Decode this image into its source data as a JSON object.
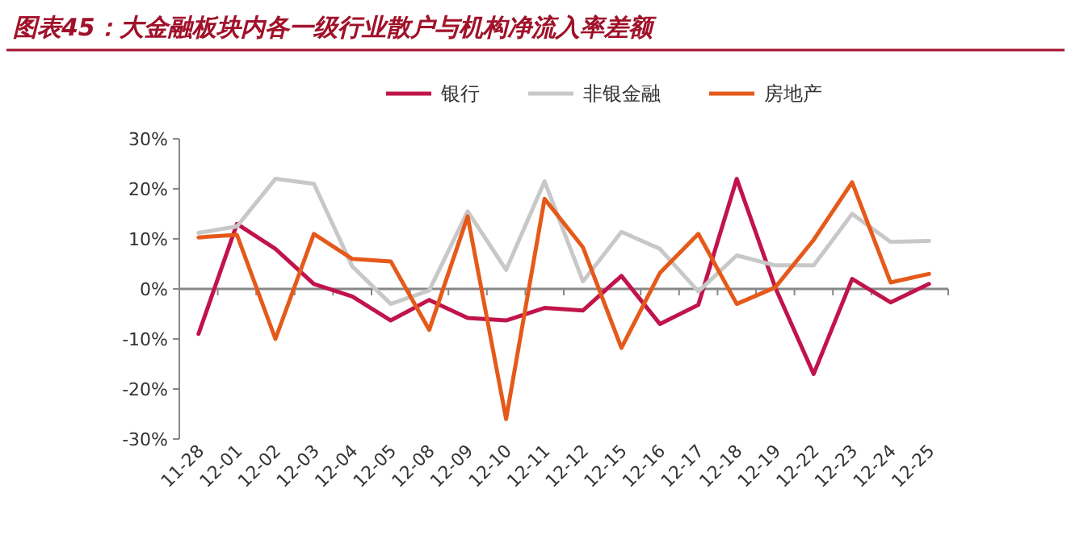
{
  "chart_data": {
    "type": "line",
    "title": "图表45：大金融板块内各一级行业散户与机构净流入率差额",
    "categories": [
      "11-28",
      "12-01",
      "12-02",
      "12-03",
      "12-04",
      "12-05",
      "12-08",
      "12-09",
      "12-10",
      "12-11",
      "12-12",
      "12-15",
      "12-16",
      "12-17",
      "12-18",
      "12-19",
      "12-22",
      "12-23",
      "12-24",
      "12-25"
    ],
    "series": [
      {
        "name": "银行",
        "color": "#c0144b",
        "values": [
          -9,
          13,
          8,
          1,
          -1.5,
          -6.3,
          -2.2,
          -5.8,
          -6.3,
          -3.8,
          -4.3,
          2.6,
          -7,
          -3.2,
          22,
          0.3,
          -17,
          2,
          -2.7,
          1
        ]
      },
      {
        "name": "非银金融",
        "color": "#c8c8c8",
        "values": [
          11.2,
          12.5,
          22,
          21,
          4.5,
          -3,
          -0.3,
          15.5,
          3.8,
          21.5,
          1.5,
          11.4,
          8,
          -0.5,
          6.7,
          4.7,
          4.7,
          15,
          9.4,
          9.6
        ]
      },
      {
        "name": "房地产",
        "color": "#e55a1a",
        "values": [
          10.3,
          10.8,
          -10,
          11,
          6,
          5.5,
          -8.2,
          14.5,
          -26,
          18,
          8.3,
          -11.8,
          3.2,
          11,
          -3,
          0.3,
          9.8,
          21.3,
          1.3,
          3
        ]
      }
    ],
    "ylim": [
      -30,
      30
    ],
    "yticks": [
      {
        "value": -30,
        "label": "-30%"
      },
      {
        "value": -20,
        "label": "-20%"
      },
      {
        "value": -10,
        "label": "-10%"
      },
      {
        "value": 0,
        "label": "0%"
      },
      {
        "value": 10,
        "label": "10%"
      },
      {
        "value": 20,
        "label": "20%"
      },
      {
        "value": 30,
        "label": "30%"
      }
    ],
    "legend": "top",
    "marker": "none",
    "line_style": "solid"
  }
}
